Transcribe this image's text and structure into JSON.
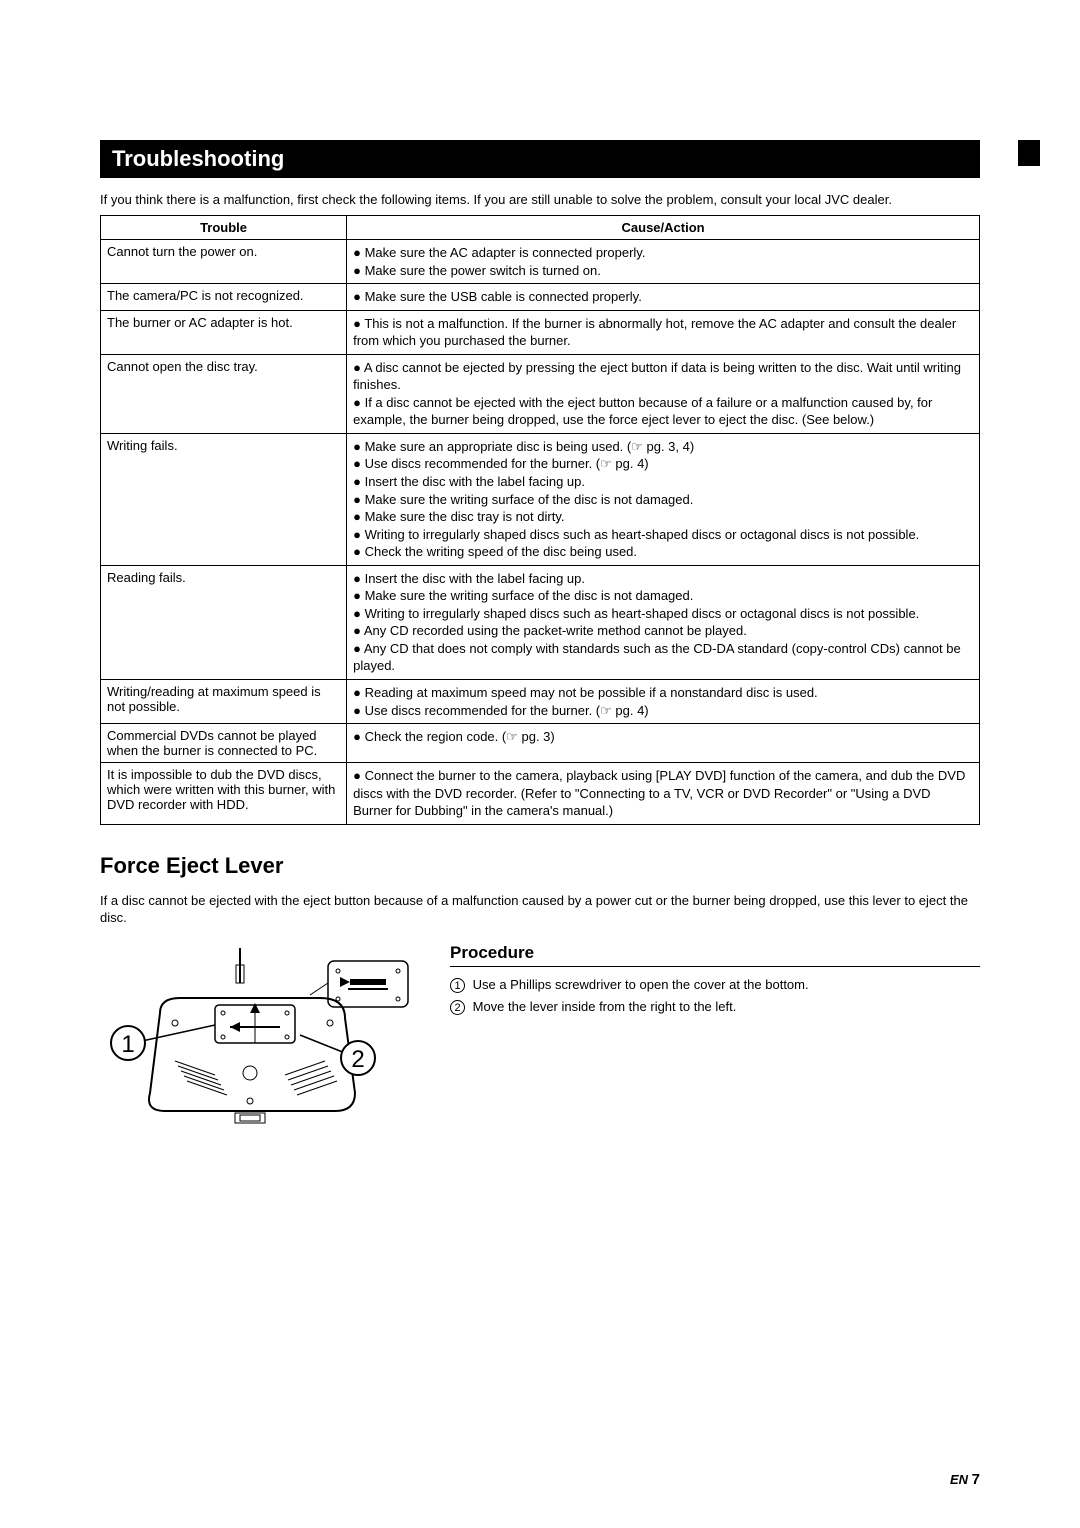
{
  "section_title": "Troubleshooting",
  "intro": "If you think there is a malfunction, first check the following items. If you are still unable to solve the problem, consult your local JVC dealer.",
  "table": {
    "headers": [
      "Trouble",
      "Cause/Action"
    ],
    "rows": [
      {
        "trouble": "Cannot turn the power on.",
        "actions": [
          "Make sure the AC adapter is connected properly.",
          "Make sure the power switch is turned on."
        ]
      },
      {
        "trouble": "The camera/PC is not recognized.",
        "actions": [
          "Make sure the USB cable is connected properly."
        ]
      },
      {
        "trouble": "The burner or AC adapter is hot.",
        "actions": [
          "This is not a malfunction. If the burner is abnormally hot, remove the AC adapter and consult the dealer from which you purchased the burner."
        ]
      },
      {
        "trouble": "Cannot open the disc tray.",
        "actions": [
          "A disc cannot be ejected by pressing the eject button if data is being written to the disc. Wait until writing finishes.",
          "If a disc cannot be ejected with the eject button because of a failure or a malfunction caused by, for example, the burner being dropped, use the force eject lever to eject the disc. (See below.)"
        ]
      },
      {
        "trouble": "Writing fails.",
        "actions": [
          "Make sure an appropriate disc is being used. (☞ pg. 3, 4)",
          "Use discs recommended for the burner. (☞ pg. 4)",
          "Insert the disc with the label facing up.",
          "Make sure the writing surface of the disc is not damaged.",
          "Make sure the disc tray is not dirty.",
          "Writing to irregularly shaped discs such as heart-shaped discs or octagonal discs is not possible.",
          "Check the writing speed of the disc being used."
        ]
      },
      {
        "trouble": "Reading fails.",
        "actions": [
          "Insert the disc with the label facing up.",
          "Make sure the writing surface of the disc is not damaged.",
          "Writing to irregularly shaped discs such as heart-shaped discs or octagonal discs is not possible.",
          "Any CD recorded using the packet-write method cannot be played.",
          "Any CD that does not comply with standards such as the CD-DA standard (copy-control CDs) cannot be played."
        ]
      },
      {
        "trouble": "Writing/reading at maximum speed is not possible.",
        "actions": [
          "Reading at maximum speed may not be possible if a nonstandard disc is used.",
          "Use discs recommended for the burner. (☞ pg. 4)"
        ]
      },
      {
        "trouble": "Commercial DVDs cannot be played when the burner is connected to PC.",
        "actions": [
          "Check the region code. (☞ pg. 3)"
        ]
      },
      {
        "trouble": "It is impossible to dub the DVD discs, which were written with this burner, with DVD recorder with HDD.",
        "actions": [
          "Connect the burner to the camera, playback using [PLAY DVD] function of the camera, and dub the DVD discs with the DVD recorder.\n(Refer to \"Connecting to a TV, VCR or DVD Recorder\" or \"Using a DVD Burner for Dubbing\" in the camera's manual.)"
        ]
      }
    ]
  },
  "force_eject": {
    "heading": "Force Eject Lever",
    "text": "If a disc cannot be ejected with the eject button because of a malfunction caused by a power cut or the burner being dropped, use this lever to eject the disc.",
    "procedure_label": "Procedure",
    "steps": [
      "Use a Phillips screwdriver to open the cover at the bottom.",
      "Move the lever inside from the right to the left."
    ],
    "callouts": [
      "1",
      "2"
    ]
  },
  "footer": {
    "lang": "EN",
    "page": "7"
  }
}
